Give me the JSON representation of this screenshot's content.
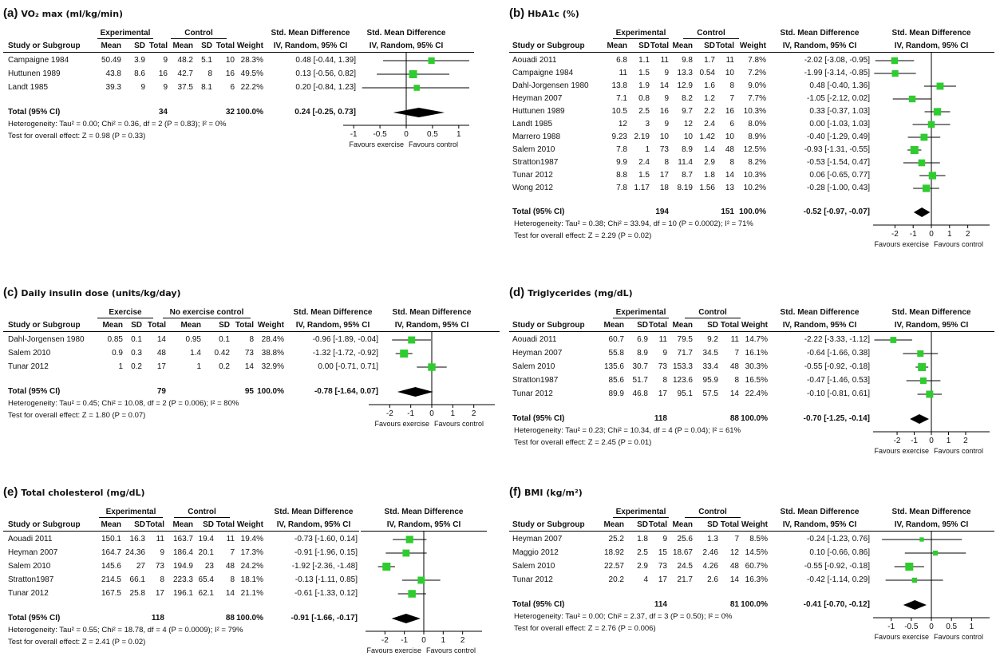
{
  "colors": {
    "marker": "#2ecc2e",
    "diamond": "#000000",
    "line": "#000000"
  },
  "chart_data": [
    {
      "type": "forest",
      "letter": "(a)",
      "title": "VO₂ max (ml/kg/min)",
      "group_exp": "Experimental",
      "group_ctrl": "Control",
      "col_headers": {
        "study": "Study or Subgroup",
        "mean1": "Mean",
        "sd1": "SD",
        "total1": "Total",
        "mean2": "Mean",
        "sd2": "SD",
        "total2": "Total",
        "weight": "Weight",
        "smd": "Std. Mean Difference",
        "ci_label": "IV, Random, 95% CI",
        "plot_title": "Std. Mean Difference",
        "plot_subtitle": "IV, Random, 95% CI"
      },
      "studies": [
        {
          "study": "Campaigne 1984",
          "mean1": "50.49",
          "sd1": "3.9",
          "total1": "9",
          "mean2": "48.2",
          "sd2": "5.1",
          "total2": "10",
          "weight": "28.3%",
          "ci_text": "0.48 [-0.44, 1.39]",
          "est": 0.48,
          "lo": -0.44,
          "hi": 1.39,
          "w": 28.3
        },
        {
          "study": "Huttunen 1989",
          "mean1": "43.8",
          "sd1": "8.6",
          "total1": "16",
          "mean2": "42.7",
          "sd2": "8",
          "total2": "16",
          "weight": "49.5%",
          "ci_text": "0.13 [-0.56, 0.82]",
          "est": 0.13,
          "lo": -0.56,
          "hi": 0.82,
          "w": 49.5
        },
        {
          "study": "Landt 1985",
          "mean1": "39.3",
          "sd1": "9",
          "total1": "9",
          "mean2": "37.5",
          "sd2": "8.1",
          "total2": "6",
          "weight": "22.2%",
          "ci_text": "0.20 [-0.84, 1.23]",
          "est": 0.2,
          "lo": -0.84,
          "hi": 1.23,
          "w": 22.2
        }
      ],
      "total": {
        "label": "Total (95% CI)",
        "total1": "34",
        "total2": "32",
        "weight": "100.0%",
        "ci_text": "0.24 [-0.25, 0.73]",
        "est": 0.24,
        "lo": -0.25,
        "hi": 0.73
      },
      "heterogeneity": "Heterogeneity: Tau² = 0.00; Chi² = 0.36, df = 2 (P = 0.83); I² = 0%",
      "overall": "Test for overall effect: Z = 0.98 (P = 0.33)",
      "xlim": [
        -1.2,
        1.2
      ],
      "ticks": [
        -1,
        -0.5,
        0,
        0.5,
        1
      ],
      "tick_labels": [
        "-1",
        "-0.5",
        "0",
        "0.5",
        "1"
      ],
      "favours_left": "Favours exercise",
      "favours_right": "Favours control"
    },
    {
      "type": "forest",
      "letter": "(b)",
      "title": "HbA1c (%)",
      "group_exp": "Experimental",
      "group_ctrl": "Control",
      "col_headers": {
        "study": "Study or Subgroup",
        "mean1": "Mean",
        "sd1": "SD",
        "total1": "Total",
        "mean2": "Mean",
        "sd2": "SD",
        "total2": "Total",
        "weight": "Weight",
        "smd": "Std. Mean Difference",
        "ci_label": "IV, Random, 95% CI",
        "plot_title": "Std. Mean Difference",
        "plot_subtitle": "IV, Random, 95% CI"
      },
      "studies": [
        {
          "study": "Aouadi 2011",
          "mean1": "6.8",
          "sd1": "1.1",
          "total1": "11",
          "mean2": "9.8",
          "sd2": "1.7",
          "total2": "11",
          "weight": "7.8%",
          "ci_text": "-2.02 [-3.08, -0.95]",
          "est": -2.02,
          "lo": -3.08,
          "hi": -0.95,
          "w": 7.8
        },
        {
          "study": "Campaigne 1984",
          "mean1": "11",
          "sd1": "1.5",
          "total1": "9",
          "mean2": "13.3",
          "sd2": "0.54",
          "total2": "10",
          "weight": "7.2%",
          "ci_text": "-1.99 [-3.14, -0.85]",
          "est": -1.99,
          "lo": -3.14,
          "hi": -0.85,
          "w": 7.2
        },
        {
          "study": "Dahl-Jorgensen 1980",
          "mean1": "13.8",
          "sd1": "1.9",
          "total1": "14",
          "mean2": "12.9",
          "sd2": "1.6",
          "total2": "8",
          "weight": "9.0%",
          "ci_text": "0.48 [-0.40, 1.36]",
          "est": 0.48,
          "lo": -0.4,
          "hi": 1.36,
          "w": 9.0
        },
        {
          "study": "Heyman 2007",
          "mean1": "7.1",
          "sd1": "0.8",
          "total1": "9",
          "mean2": "8.2",
          "sd2": "1.2",
          "total2": "7",
          "weight": "7.7%",
          "ci_text": "-1.05 [-2.12, 0.02]",
          "est": -1.05,
          "lo": -2.12,
          "hi": 0.02,
          "w": 7.7
        },
        {
          "study": "Huttunen 1989",
          "mean1": "10.5",
          "sd1": "2.5",
          "total1": "16",
          "mean2": "9.7",
          "sd2": "2.2",
          "total2": "16",
          "weight": "10.3%",
          "ci_text": "0.33 [-0.37, 1.03]",
          "est": 0.33,
          "lo": -0.37,
          "hi": 1.03,
          "w": 10.3
        },
        {
          "study": "Landt 1985",
          "mean1": "12",
          "sd1": "3",
          "total1": "9",
          "mean2": "12",
          "sd2": "2.4",
          "total2": "6",
          "weight": "8.0%",
          "ci_text": "0.00 [-1.03, 1.03]",
          "est": 0.0,
          "lo": -1.03,
          "hi": 1.03,
          "w": 8.0
        },
        {
          "study": "Marrero 1988",
          "mean1": "9.23",
          "sd1": "2.19",
          "total1": "10",
          "mean2": "10",
          "sd2": "1.42",
          "total2": "10",
          "weight": "8.9%",
          "ci_text": "-0.40 [-1.29, 0.49]",
          "est": -0.4,
          "lo": -1.29,
          "hi": 0.49,
          "w": 8.9
        },
        {
          "study": "Salem 2010",
          "mean1": "7.8",
          "sd1": "1",
          "total1": "73",
          "mean2": "8.9",
          "sd2": "1.4",
          "total2": "48",
          "weight": "12.5%",
          "ci_text": "-0.93 [-1.31, -0.55]",
          "est": -0.93,
          "lo": -1.31,
          "hi": -0.55,
          "w": 12.5
        },
        {
          "study": "Stratton1987",
          "mean1": "9.9",
          "sd1": "2.4",
          "total1": "8",
          "mean2": "11.4",
          "sd2": "2.9",
          "total2": "8",
          "weight": "8.2%",
          "ci_text": "-0.53 [-1.54, 0.47]",
          "est": -0.53,
          "lo": -1.54,
          "hi": 0.47,
          "w": 8.2
        },
        {
          "study": "Tunar 2012",
          "mean1": "8.8",
          "sd1": "1.5",
          "total1": "17",
          "mean2": "8.7",
          "sd2": "1.8",
          "total2": "14",
          "weight": "10.3%",
          "ci_text": "0.06 [-0.65, 0.77]",
          "est": 0.06,
          "lo": -0.65,
          "hi": 0.77,
          "w": 10.3
        },
        {
          "study": "Wong 2012",
          "mean1": "7.8",
          "sd1": "1.17",
          "total1": "18",
          "mean2": "8.19",
          "sd2": "1.56",
          "total2": "13",
          "weight": "10.2%",
          "ci_text": "-0.28 [-1.00, 0.43]",
          "est": -0.28,
          "lo": -1.0,
          "hi": 0.43,
          "w": 10.2
        }
      ],
      "total": {
        "label": "Total (95% CI)",
        "total1": "194",
        "total2": "151",
        "weight": "100.0%",
        "ci_text": "-0.52 [-0.97, -0.07]",
        "est": -0.52,
        "lo": -0.97,
        "hi": -0.07
      },
      "heterogeneity": "Heterogeneity: Tau² = 0.38; Chi² = 33.94, df = 10 (P = 0.0002); I² = 71%",
      "overall": "Test for overall effect: Z = 2.29 (P = 0.02)",
      "xlim": [
        -3.2,
        3.2
      ],
      "ticks": [
        -2,
        -1,
        0,
        1,
        2
      ],
      "tick_labels": [
        "-2",
        "-1",
        "0",
        "1",
        "2"
      ],
      "favours_left": "Favours exercise",
      "favours_right": "Favours control"
    },
    {
      "type": "forest",
      "letter": "(c)",
      "title": "Daily insulin dose (units/kg/day)",
      "group_exp": "Exercise",
      "group_ctrl": "No exercise control",
      "col_headers": {
        "study": "Study or Subgroup",
        "mean1": "Mean",
        "sd1": "SD",
        "total1": "Total",
        "mean2": "Mean",
        "sd2": "SD",
        "total2": "Total",
        "weight": "Weight",
        "smd": "Std. Mean Difference",
        "ci_label": "IV, Random, 95% CI",
        "plot_title": "Std. Mean Difference",
        "plot_subtitle": "IV, Random, 95% CI"
      },
      "studies": [
        {
          "study": "Dahl-Jorgensen 1980",
          "mean1": "0.85",
          "sd1": "0.1",
          "total1": "14",
          "mean2": "0.95",
          "sd2": "0.1",
          "total2": "8",
          "weight": "28.4%",
          "ci_text": "-0.96 [-1.89, -0.04]",
          "est": -0.96,
          "lo": -1.89,
          "hi": -0.04,
          "w": 28.4
        },
        {
          "study": "Salem 2010",
          "mean1": "0.9",
          "sd1": "0.3",
          "total1": "48",
          "mean2": "1.4",
          "sd2": "0.42",
          "total2": "73",
          "weight": "38.8%",
          "ci_text": "-1.32 [-1.72, -0.92]",
          "est": -1.32,
          "lo": -1.72,
          "hi": -0.92,
          "w": 38.8
        },
        {
          "study": "Tunar 2012",
          "mean1": "1",
          "sd1": "0.2",
          "total1": "17",
          "mean2": "1",
          "sd2": "0.2",
          "total2": "14",
          "weight": "32.9%",
          "ci_text": "0.00 [-0.71, 0.71]",
          "est": 0.0,
          "lo": -0.71,
          "hi": 0.71,
          "w": 32.9
        }
      ],
      "total": {
        "label": "Total (95% CI)",
        "total1": "79",
        "total2": "95",
        "weight": "100.0%",
        "ci_text": "-0.78 [-1.64, 0.07]",
        "est": -0.78,
        "lo": -1.64,
        "hi": 0.07
      },
      "heterogeneity": "Heterogeneity: Tau² = 0.45; Chi² = 10.08, df = 2 (P = 0.006); I² = 80%",
      "overall": "Test for overall effect: Z = 1.80 (P = 0.07)",
      "xlim": [
        -3,
        3
      ],
      "ticks": [
        -2,
        -1,
        0,
        1,
        2
      ],
      "tick_labels": [
        "-2",
        "-1",
        "0",
        "1",
        "2"
      ],
      "favours_left": "Favours exercise",
      "favours_right": "Favours control"
    },
    {
      "type": "forest",
      "letter": "(d)",
      "title": "Triglycerides (mg/dL)",
      "group_exp": "Experimental",
      "group_ctrl": "Control",
      "col_headers": {
        "study": "Study or Subgroup",
        "mean1": "Mean",
        "sd1": "SD",
        "total1": "Total",
        "mean2": "Mean",
        "sd2": "SD",
        "total2": "Total",
        "weight": "Weight",
        "smd": "Std. Mean Difference",
        "ci_label": "IV, Random, 95% CI",
        "plot_title": "Std. Mean Difference",
        "plot_subtitle": "IV, Random, 95% CI"
      },
      "studies": [
        {
          "study": "Aouadi 2011",
          "mean1": "60.7",
          "sd1": "6.9",
          "total1": "11",
          "mean2": "79.5",
          "sd2": "9.2",
          "total2": "11",
          "weight": "14.7%",
          "ci_text": "-2.22 [-3.33, -1.12]",
          "est": -2.22,
          "lo": -3.33,
          "hi": -1.12,
          "w": 14.7
        },
        {
          "study": "Heyman 2007",
          "mean1": "55.8",
          "sd1": "8.9",
          "total1": "9",
          "mean2": "71.7",
          "sd2": "34.5",
          "total2": "7",
          "weight": "16.1%",
          "ci_text": "-0.64 [-1.66, 0.38]",
          "est": -0.64,
          "lo": -1.66,
          "hi": 0.38,
          "w": 16.1
        },
        {
          "study": "Salem 2010",
          "mean1": "135.6",
          "sd1": "30.7",
          "total1": "73",
          "mean2": "153.3",
          "sd2": "33.4",
          "total2": "48",
          "weight": "30.3%",
          "ci_text": "-0.55 [-0.92, -0.18]",
          "est": -0.55,
          "lo": -0.92,
          "hi": -0.18,
          "w": 30.3
        },
        {
          "study": "Stratton1987",
          "mean1": "85.6",
          "sd1": "51.7",
          "total1": "8",
          "mean2": "123.6",
          "sd2": "95.9",
          "total2": "8",
          "weight": "16.5%",
          "ci_text": "-0.47 [-1.46, 0.53]",
          "est": -0.47,
          "lo": -1.46,
          "hi": 0.53,
          "w": 16.5
        },
        {
          "study": "Tunar 2012",
          "mean1": "89.9",
          "sd1": "46.8",
          "total1": "17",
          "mean2": "95.1",
          "sd2": "57.5",
          "total2": "14",
          "weight": "22.4%",
          "ci_text": "-0.10 [-0.81, 0.61]",
          "est": -0.1,
          "lo": -0.81,
          "hi": 0.61,
          "w": 22.4
        }
      ],
      "total": {
        "label": "Total (95% CI)",
        "total1": "118",
        "total2": "88",
        "weight": "100.0%",
        "ci_text": "-0.70 [-1.25, -0.14]",
        "est": -0.7,
        "lo": -1.25,
        "hi": -0.14
      },
      "heterogeneity": "Heterogeneity: Tau² = 0.23; Chi² = 10.34, df = 4 (P = 0.04); I² = 61%",
      "overall": "Test for overall effect: Z = 2.45 (P = 0.01)",
      "xlim": [
        -3.4,
        3.4
      ],
      "ticks": [
        -2,
        -1,
        0,
        1,
        2
      ],
      "tick_labels": [
        "-2",
        "-1",
        "0",
        "1",
        "2"
      ],
      "favours_left": "Favours exercise",
      "favours_right": "Favours control"
    },
    {
      "type": "forest",
      "letter": "(e)",
      "title": "Total cholesterol (mg/dL)",
      "group_exp": "Experimental",
      "group_ctrl": "Control",
      "col_headers": {
        "study": "Study or Subgroup",
        "mean1": "Mean",
        "sd1": "SD",
        "total1": "Total",
        "mean2": "Mean",
        "sd2": "SD",
        "total2": "Total",
        "weight": "Weight",
        "smd": "Std. Mean Difference",
        "ci_label": "IV, Random, 95% CI",
        "plot_title": "Std. Mean Difference",
        "plot_subtitle": "IV, Random, 95% CI"
      },
      "studies": [
        {
          "study": "Aouadi 2011",
          "mean1": "150.1",
          "sd1": "16.3",
          "total1": "11",
          "mean2": "163.7",
          "sd2": "19.4",
          "total2": "11",
          "weight": "19.4%",
          "ci_text": "-0.73 [-1.60, 0.14]",
          "est": -0.73,
          "lo": -1.6,
          "hi": 0.14,
          "w": 19.4
        },
        {
          "study": "Heyman 2007",
          "mean1": "164.7",
          "sd1": "24.36",
          "total1": "9",
          "mean2": "186.4",
          "sd2": "20.1",
          "total2": "7",
          "weight": "17.3%",
          "ci_text": "-0.91 [-1.96, 0.15]",
          "est": -0.91,
          "lo": -1.96,
          "hi": 0.15,
          "w": 17.3
        },
        {
          "study": "Salem 2010",
          "mean1": "145.6",
          "sd1": "27",
          "total1": "73",
          "mean2": "194.9",
          "sd2": "23",
          "total2": "48",
          "weight": "24.2%",
          "ci_text": "-1.92 [-2.36, -1.48]",
          "est": -1.92,
          "lo": -2.36,
          "hi": -1.48,
          "w": 24.2
        },
        {
          "study": "Stratton1987",
          "mean1": "214.5",
          "sd1": "66.1",
          "total1": "8",
          "mean2": "223.3",
          "sd2": "65.4",
          "total2": "8",
          "weight": "18.1%",
          "ci_text": "-0.13 [-1.11, 0.85]",
          "est": -0.13,
          "lo": -1.11,
          "hi": 0.85,
          "w": 18.1
        },
        {
          "study": "Tunar 2012",
          "mean1": "167.5",
          "sd1": "25.8",
          "total1": "17",
          "mean2": "196.1",
          "sd2": "62.1",
          "total2": "14",
          "weight": "21.1%",
          "ci_text": "-0.61 [-1.33, 0.12]",
          "est": -0.61,
          "lo": -1.33,
          "hi": 0.12,
          "w": 21.1
        }
      ],
      "total": {
        "label": "Total (95% CI)",
        "total1": "118",
        "total2": "88",
        "weight": "100.0%",
        "ci_text": "-0.91 [-1.66, -0.17]",
        "est": -0.91,
        "lo": -1.66,
        "hi": -0.17
      },
      "heterogeneity": "Heterogeneity: Tau² = 0.55; Chi² = 18.78, df = 4 (P = 0.0009); I² = 79%",
      "overall": "Test for overall effect: Z = 2.41 (P = 0.02)",
      "xlim": [
        -3,
        3
      ],
      "ticks": [
        -2,
        -1,
        0,
        1,
        2
      ],
      "tick_labels": [
        "-2",
        "-1",
        "0",
        "1",
        "2"
      ],
      "favours_left": "Favours exercise",
      "favours_right": "Favours control"
    },
    {
      "type": "forest",
      "letter": "(f)",
      "title": "BMI (kg/m²)",
      "group_exp": "Experimental",
      "group_ctrl": "Control",
      "col_headers": {
        "study": "Study or Subgroup",
        "mean1": "Mean",
        "sd1": "SD",
        "total1": "Total",
        "mean2": "Mean",
        "sd2": "SD",
        "total2": "Total",
        "weight": "Weight",
        "smd": "Std. Mean Difference",
        "ci_label": "IV, Random, 95% CI",
        "plot_title": "Std. Mean Difference",
        "plot_subtitle": "IV, Random, 95% CI"
      },
      "studies": [
        {
          "study": "Heyman 2007",
          "mean1": "25.2",
          "sd1": "1.8",
          "total1": "9",
          "mean2": "25.6",
          "sd2": "1.3",
          "total2": "7",
          "weight": "8.5%",
          "ci_text": "-0.24 [-1.23, 0.76]",
          "est": -0.24,
          "lo": -1.23,
          "hi": 0.76,
          "w": 8.5
        },
        {
          "study": "Maggio 2012",
          "mean1": "18.92",
          "sd1": "2.5",
          "total1": "15",
          "mean2": "18.67",
          "sd2": "2.46",
          "total2": "12",
          "weight": "14.5%",
          "ci_text": "0.10 [-0.66, 0.86]",
          "est": 0.1,
          "lo": -0.66,
          "hi": 0.86,
          "w": 14.5
        },
        {
          "study": "Salem 2010",
          "mean1": "22.57",
          "sd1": "2.9",
          "total1": "73",
          "mean2": "24.5",
          "sd2": "4.26",
          "total2": "48",
          "weight": "60.7%",
          "ci_text": "-0.55 [-0.92, -0.18]",
          "est": -0.55,
          "lo": -0.92,
          "hi": -0.18,
          "w": 60.7
        },
        {
          "study": "Tunar 2012",
          "mean1": "20.2",
          "sd1": "4",
          "total1": "17",
          "mean2": "21.7",
          "sd2": "2.6",
          "total2": "14",
          "weight": "16.3%",
          "ci_text": "-0.42 [-1.14, 0.29]",
          "est": -0.42,
          "lo": -1.14,
          "hi": 0.29,
          "w": 16.3
        }
      ],
      "total": {
        "label": "Total (95% CI)",
        "total1": "114",
        "total2": "81",
        "weight": "100.0%",
        "ci_text": "-0.41 [-0.70, -0.12]",
        "est": -0.41,
        "lo": -0.7,
        "hi": -0.12
      },
      "heterogeneity": "Heterogeneity: Tau² = 0.00; Chi² = 2.37, df = 3 (P = 0.50); I² = 0%",
      "overall": "Test for overall effect: Z = 2.76 (P = 0.006)",
      "xlim": [
        -1.45,
        1.45
      ],
      "ticks": [
        -1,
        -0.5,
        0,
        0.5,
        1
      ],
      "tick_labels": [
        "-1",
        "-0.5",
        "0",
        "0.5",
        "1"
      ],
      "favours_left": "Favours exercise",
      "favours_right": "Favours control"
    }
  ]
}
